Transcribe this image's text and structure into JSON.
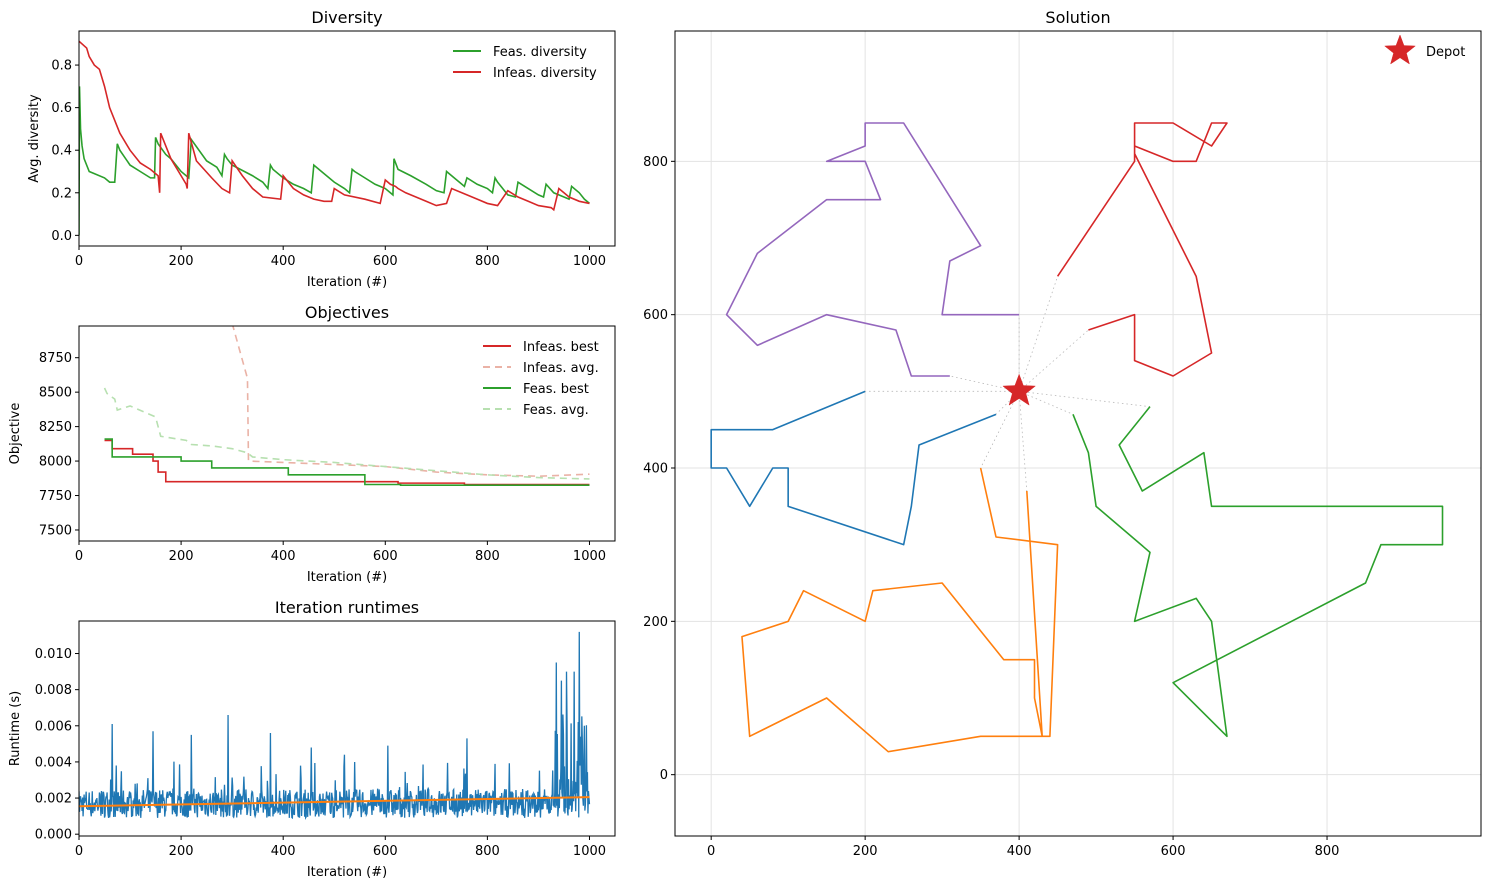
{
  "colors": {
    "green": "#2ca02c",
    "red": "#d62728",
    "blue": "#1f77b4",
    "orange": "#ff7f0e",
    "purple": "#9467bd",
    "light_red": "#eab2a6",
    "light_green": "#b7e0b0",
    "grid": "#e3e3e3"
  },
  "chart_data": [
    {
      "id": "diversity",
      "type": "line",
      "title": "Diversity",
      "xlabel": "Iteration (#)",
      "ylabel": "Avg. diversity",
      "xlim": [
        0,
        1050
      ],
      "ylim": [
        -0.05,
        0.96
      ],
      "xticks": [
        0,
        200,
        400,
        600,
        800,
        1000
      ],
      "yticks": [
        0.0,
        0.2,
        0.4,
        0.6,
        0.8
      ],
      "ytick_labels": [
        "0.0",
        "0.2",
        "0.4",
        "0.6",
        "0.8"
      ],
      "grid": false,
      "legend": "top-right",
      "series": [
        {
          "name": "Feas. diversity",
          "color": "green",
          "dash": "",
          "x": [
            0,
            1,
            3,
            6,
            10,
            20,
            30,
            50,
            60,
            70,
            75,
            80,
            100,
            120,
            140,
            148,
            150,
            155,
            170,
            180,
            200,
            215,
            220,
            250,
            270,
            280,
            285,
            290,
            300,
            340,
            360,
            370,
            375,
            380,
            400,
            420,
            440,
            455,
            460,
            480,
            500,
            520,
            530,
            535,
            540,
            560,
            580,
            600,
            615,
            617,
            625,
            650,
            680,
            700,
            715,
            720,
            740,
            755,
            760,
            780,
            800,
            810,
            815,
            820,
            830,
            840,
            855,
            860,
            880,
            900,
            910,
            915,
            930,
            950,
            960,
            965,
            980,
            990,
            1000
          ],
          "y": [
            0.0,
            0.7,
            0.5,
            0.42,
            0.36,
            0.3,
            0.29,
            0.27,
            0.25,
            0.25,
            0.43,
            0.4,
            0.33,
            0.3,
            0.27,
            0.27,
            0.46,
            0.43,
            0.38,
            0.36,
            0.3,
            0.27,
            0.45,
            0.35,
            0.32,
            0.28,
            0.38,
            0.36,
            0.33,
            0.28,
            0.25,
            0.22,
            0.33,
            0.31,
            0.27,
            0.24,
            0.22,
            0.2,
            0.33,
            0.29,
            0.25,
            0.22,
            0.2,
            0.31,
            0.3,
            0.27,
            0.24,
            0.22,
            0.19,
            0.36,
            0.31,
            0.28,
            0.24,
            0.21,
            0.2,
            0.3,
            0.26,
            0.23,
            0.27,
            0.24,
            0.22,
            0.2,
            0.27,
            0.25,
            0.22,
            0.19,
            0.18,
            0.25,
            0.22,
            0.19,
            0.18,
            0.24,
            0.2,
            0.18,
            0.17,
            0.23,
            0.2,
            0.17,
            0.15
          ]
        },
        {
          "name": "Infeas. diversity",
          "color": "red",
          "dash": "",
          "x": [
            0,
            1,
            15,
            20,
            30,
            40,
            50,
            60,
            80,
            100,
            120,
            140,
            155,
            158,
            160,
            180,
            200,
            210,
            212,
            215,
            230,
            260,
            280,
            295,
            300,
            320,
            340,
            360,
            395,
            400,
            410,
            420,
            440,
            460,
            480,
            495,
            500,
            520,
            560,
            590,
            600,
            610,
            620,
            625,
            640,
            660,
            680,
            700,
            720,
            730,
            760,
            780,
            800,
            820,
            840,
            860,
            880,
            900,
            925,
            930,
            940,
            950,
            960,
            980,
            1000
          ],
          "y": [
            0.91,
            0.91,
            0.88,
            0.84,
            0.8,
            0.78,
            0.7,
            0.6,
            0.48,
            0.4,
            0.34,
            0.31,
            0.28,
            0.2,
            0.48,
            0.36,
            0.28,
            0.24,
            0.22,
            0.48,
            0.35,
            0.27,
            0.22,
            0.2,
            0.35,
            0.28,
            0.22,
            0.18,
            0.17,
            0.28,
            0.25,
            0.22,
            0.19,
            0.17,
            0.16,
            0.16,
            0.22,
            0.19,
            0.17,
            0.15,
            0.26,
            0.24,
            0.23,
            0.22,
            0.2,
            0.18,
            0.16,
            0.14,
            0.15,
            0.22,
            0.19,
            0.17,
            0.15,
            0.14,
            0.21,
            0.18,
            0.16,
            0.14,
            0.13,
            0.12,
            0.22,
            0.2,
            0.18,
            0.16,
            0.15
          ]
        }
      ]
    },
    {
      "id": "objectives",
      "type": "line",
      "title": "Objectives",
      "xlabel": "Iteration (#)",
      "ylabel": "Objective",
      "xlim": [
        0,
        1050
      ],
      "ylim": [
        7420,
        8980
      ],
      "xticks": [
        0,
        200,
        400,
        600,
        800,
        1000
      ],
      "yticks": [
        7500,
        7750,
        8000,
        8250,
        8500,
        8750
      ],
      "ytick_labels": [
        "7500",
        "7750",
        "8000",
        "8250",
        "8500",
        "8750"
      ],
      "grid": false,
      "legend": "top-right",
      "series": [
        {
          "name": "Infeas. best",
          "color": "red",
          "dash": "",
          "step": true,
          "x": [
            50,
            65,
            105,
            145,
            155,
            170,
            500,
            625,
            755,
            1000
          ],
          "y": [
            8150,
            8090,
            8050,
            8000,
            7920,
            7850,
            7850,
            7840,
            7830,
            7830
          ]
        },
        {
          "name": "Infeas. avg.",
          "color": "light_red",
          "dash": "7,5",
          "step": false,
          "x": [
            300,
            330,
            332,
            400,
            500,
            600,
            700,
            800,
            900,
            1000
          ],
          "y": [
            9000,
            8600,
            8000,
            7990,
            7975,
            7960,
            7920,
            7900,
            7890,
            7905
          ]
        },
        {
          "name": "Feas. best",
          "color": "green",
          "dash": "",
          "step": true,
          "x": [
            50,
            65,
            200,
            260,
            410,
            560,
            630,
            1000
          ],
          "y": [
            8160,
            8030,
            8000,
            7950,
            7900,
            7830,
            7825,
            7825
          ]
        },
        {
          "name": "Feas. avg.",
          "color": "light_green",
          "dash": "7,5",
          "step": false,
          "x": [
            50,
            55,
            70,
            75,
            100,
            150,
            160,
            210,
            220,
            260,
            300,
            330,
            340,
            400,
            500,
            600,
            700,
            800,
            900,
            1000
          ],
          "y": [
            8530,
            8490,
            8450,
            8370,
            8400,
            8320,
            8180,
            8150,
            8120,
            8110,
            8090,
            8060,
            8030,
            8010,
            7990,
            7960,
            7930,
            7900,
            7880,
            7870
          ]
        }
      ]
    },
    {
      "id": "runtimes",
      "type": "line",
      "title": "Iteration runtimes",
      "xlabel": "Iteration (#)",
      "ylabel": "Runtime (s)",
      "xlim": [
        0,
        1050
      ],
      "ylim": [
        -0.0001,
        0.0118
      ],
      "xticks": [
        0,
        200,
        400,
        600,
        800,
        1000
      ],
      "yticks": [
        0.0,
        0.002,
        0.004,
        0.006,
        0.008,
        0.01
      ],
      "ytick_labels": [
        "0.000",
        "0.002",
        "0.004",
        "0.006",
        "0.008",
        "0.010"
      ],
      "grid": false,
      "series": [
        {
          "name": "",
          "color": "blue",
          "kind": "noisy",
          "baseline": 0.0017,
          "x_range": [
            0,
            1000
          ],
          "spikes": [
            {
              "x": 65,
              "y": 0.0061
            },
            {
              "x": 145,
              "y": 0.0057
            },
            {
              "x": 220,
              "y": 0.0055
            },
            {
              "x": 292,
              "y": 0.0066
            },
            {
              "x": 375,
              "y": 0.0056
            },
            {
              "x": 455,
              "y": 0.0048
            },
            {
              "x": 520,
              "y": 0.0044
            },
            {
              "x": 605,
              "y": 0.0049
            },
            {
              "x": 760,
              "y": 0.0053
            },
            {
              "x": 935,
              "y": 0.0095
            },
            {
              "x": 945,
              "y": 0.0085
            },
            {
              "x": 955,
              "y": 0.009
            },
            {
              "x": 970,
              "y": 0.009
            },
            {
              "x": 980,
              "y": 0.0112
            },
            {
              "x": 990,
              "y": 0.006
            }
          ]
        },
        {
          "name": "",
          "color": "orange",
          "kind": "trend",
          "x": [
            0,
            1000
          ],
          "y": [
            0.00155,
            0.00205
          ]
        }
      ]
    },
    {
      "id": "solution",
      "type": "line",
      "title": "Solution",
      "xlim": [
        -47,
        1000
      ],
      "ylim": [
        -80,
        970
      ],
      "xticks": [
        0,
        200,
        400,
        600,
        800
      ],
      "yticks": [
        0,
        200,
        400,
        600,
        800
      ],
      "grid": true,
      "legend": "top-right",
      "depot": {
        "name": "Depot",
        "x": 400,
        "y": 500
      },
      "routes": [
        {
          "color": "blue",
          "points": [
            [
              370,
              470
            ],
            [
              270,
              430
            ],
            [
              260,
              350
            ],
            [
              250,
              300
            ],
            [
              100,
              350
            ],
            [
              100,
              400
            ],
            [
              80,
              400
            ],
            [
              50,
              350
            ],
            [
              20,
              400
            ],
            [
              0,
              400
            ],
            [
              0,
              450
            ],
            [
              80,
              450
            ],
            [
              200,
              500
            ]
          ]
        },
        {
          "color": "orange",
          "points": [
            [
              350,
              400
            ],
            [
              370,
              310
            ],
            [
              450,
              300
            ],
            [
              440,
              50
            ],
            [
              350,
              50
            ],
            [
              230,
              30
            ],
            [
              150,
              100
            ],
            [
              50,
              50
            ],
            [
              40,
              180
            ],
            [
              100,
              200
            ],
            [
              120,
              240
            ],
            [
              200,
              200
            ],
            [
              210,
              240
            ],
            [
              300,
              250
            ],
            [
              380,
              150
            ],
            [
              420,
              150
            ],
            [
              420,
              100
            ],
            [
              430,
              50
            ],
            [
              410,
              370
            ]
          ]
        },
        {
          "color": "green",
          "points": [
            [
              570,
              480
            ],
            [
              530,
              430
            ],
            [
              560,
              370
            ],
            [
              640,
              420
            ],
            [
              650,
              350
            ],
            [
              950,
              350
            ],
            [
              950,
              300
            ],
            [
              870,
              300
            ],
            [
              850,
              250
            ],
            [
              600,
              120
            ],
            [
              670,
              50
            ],
            [
              650,
              200
            ],
            [
              630,
              230
            ],
            [
              550,
              200
            ],
            [
              570,
              290
            ],
            [
              500,
              350
            ],
            [
              490,
              420
            ],
            [
              470,
              470
            ]
          ]
        },
        {
          "color": "purple",
          "points": [
            [
              310,
              520
            ],
            [
              260,
              520
            ],
            [
              240,
              580
            ],
            [
              150,
              600
            ],
            [
              60,
              560
            ],
            [
              20,
              600
            ],
            [
              60,
              680
            ],
            [
              150,
              750
            ],
            [
              220,
              750
            ],
            [
              200,
              800
            ],
            [
              150,
              800
            ],
            [
              200,
              820
            ],
            [
              200,
              850
            ],
            [
              250,
              850
            ],
            [
              350,
              690
            ],
            [
              310,
              670
            ],
            [
              300,
              600
            ],
            [
              400,
              600
            ]
          ]
        },
        {
          "color": "red",
          "points": [
            [
              490,
              580
            ],
            [
              550,
              600
            ],
            [
              550,
              540
            ],
            [
              600,
              520
            ],
            [
              650,
              550
            ],
            [
              630,
              650
            ],
            [
              580,
              750
            ],
            [
              550,
              810
            ],
            [
              550,
              850
            ],
            [
              600,
              850
            ],
            [
              650,
              820
            ],
            [
              670,
              850
            ],
            [
              650,
              850
            ],
            [
              630,
              800
            ],
            [
              600,
              800
            ],
            [
              550,
              820
            ],
            [
              550,
              800
            ],
            [
              450,
              650
            ]
          ]
        }
      ]
    }
  ]
}
